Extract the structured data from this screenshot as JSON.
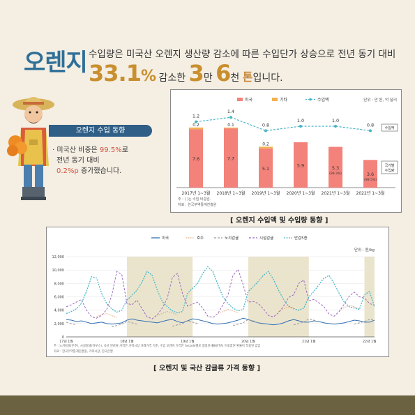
{
  "title": "오렌지",
  "headline_line1": "수입량은 미국산 오렌지 생산량 감소에 따른 수입단가 상승으로 전년 동기 대비",
  "headline_pct": "33.1",
  "headline_pct_unit": "%",
  "headline_mid1": " 감소한 ",
  "headline_num1": "3",
  "headline_unit1": "만 ",
  "headline_num2": "6",
  "headline_unit2": "천 ",
  "headline_ton": "톤",
  "headline_end": "입니다.",
  "badge": "오렌지 수입 동향",
  "bullet": {
    "prefix": "· 미국산 비중은 ",
    "pct": "99.5%",
    "suffix": "로",
    "line2": "전년 동기 대비",
    "chg": "0.2%p",
    "line3_end": " 증가했습니다."
  },
  "caption1": "[ 오렌지 수입액 및 수입량 동향 ]",
  "caption2": "[ 오렌지 및 국산 감귤류 가격 동향 ]",
  "colors": {
    "accent": "#2f6f97",
    "bar": "#f3827a",
    "line": "#46b3c6",
    "gold": "#c98f2e"
  },
  "chart_data": [
    {
      "type": "bar",
      "categories": [
        "2017년 1~3월",
        "2018년 1~3월",
        "2019년 1~3월",
        "2020년 1~3월",
        "2021년 1~3월",
        "2022년 1~3월"
      ],
      "series": [
        {
          "name": "미국",
          "values": [
            7.6,
            7.7,
            5.1,
            5.9,
            5.3,
            3.6
          ],
          "labels": [
            "7.6",
            "7.7",
            "5.1",
            "5.9",
            "5.3",
            "3.6"
          ],
          "sublabels": [
            "",
            "",
            "",
            "",
            "(99.3%)",
            "(99.5%)"
          ]
        },
        {
          "name": "기타",
          "values": [
            0.2,
            0.1,
            0.2,
            0,
            0,
            0
          ],
          "labels": [
            "0.2",
            "0.1",
            "0.2",
            "",
            "",
            ""
          ]
        },
        {
          "name": "수입액",
          "values": [
            1.2,
            1.4,
            0.8,
            1.0,
            1.0,
            0.8
          ],
          "labels": [
            "1.2",
            "1.4",
            "0.8",
            "1.0",
            "1.0",
            "0.8"
          ]
        }
      ],
      "legend": [
        "미국",
        "기타",
        "수입액"
      ],
      "unit": "단위 : 만 톤, 억 달러",
      "side_labels": [
        "수입액",
        "국가별 수입량"
      ],
      "notes": [
        "주 : ( )는 수입 비중임.",
        "자료 : 한국무역통계진흥원"
      ],
      "ylim": [
        0,
        10
      ]
    },
    {
      "type": "line",
      "unit": "단위 : 원/kg",
      "legend": [
        "미국",
        "호주",
        "노지감귤",
        "시설감귤",
        "만감5종"
      ],
      "y_ticks": [
        "0",
        "2,000",
        "4,000",
        "6,000",
        "8,000",
        "10,000",
        "12,000"
      ],
      "ylim": [
        0,
        12000
      ],
      "x_tick_labels": [
        "17년 1월",
        "18년 1월",
        "19년 1월",
        "20년 1월",
        "21년 1월",
        "22년 1월"
      ],
      "series": [
        {
          "name": "미국",
          "values": [
            2600,
            2500,
            2300,
            2400,
            2200,
            2000,
            2100,
            2200,
            2000,
            1900,
            2000,
            2100,
            2500,
            2700,
            2500,
            2400,
            2300,
            2200,
            2100,
            2300,
            2500,
            2600,
            2300,
            2100,
            2400,
            2700,
            2600,
            2400,
            2200,
            2000,
            1900,
            2000,
            2100,
            2300,
            2500,
            2800,
            2600,
            2300,
            2100,
            2000,
            1900,
            1800,
            1900,
            2100,
            2400,
            2600,
            2400,
            2200,
            2200,
            2400,
            2300,
            2100,
            2000,
            1900,
            2000,
            2100,
            2300,
            2500,
            2400,
            2200,
            2200,
            2500
          ]
        },
        {
          "name": "호주",
          "values": [
            null,
            null,
            null,
            null,
            null,
            null,
            3000,
            3300,
            3500,
            3200,
            2900,
            null,
            null,
            null,
            null,
            null,
            null,
            null,
            3200,
            3500,
            3800,
            3600,
            3300,
            null,
            null,
            null,
            null,
            null,
            null,
            null,
            3500,
            3800,
            4100,
            3900,
            3600,
            null,
            null,
            null,
            null,
            null,
            null,
            null,
            3800,
            4200,
            4500,
            4300,
            3900,
            null,
            null,
            null,
            null,
            null,
            null,
            null,
            4000,
            4400,
            4700,
            4500,
            4200,
            null,
            null,
            null
          ]
        },
        {
          "name": "노지감귤",
          "values": [
            2200,
            2000,
            1800,
            null,
            null,
            null,
            null,
            null,
            null,
            1500,
            1700,
            1900,
            2300,
            2100,
            1900,
            null,
            null,
            null,
            null,
            null,
            null,
            1600,
            1800,
            2000,
            2400,
            2200,
            2000,
            null,
            null,
            null,
            null,
            null,
            null,
            1700,
            1900,
            2100,
            2600,
            2400,
            2100,
            null,
            null,
            null,
            null,
            null,
            null,
            1800,
            2000,
            2200,
            2700,
            2500,
            2200,
            null,
            null,
            null,
            null,
            null,
            null,
            1900,
            2100,
            2300,
            2600,
            2500
          ]
        },
        {
          "name": "시설감귤",
          "values": [
            4500,
            4800,
            5200,
            5600,
            4000,
            3000,
            2800,
            3200,
            4100,
            6200,
            9800,
            9300,
            5000,
            4800,
            5500,
            4200,
            3000,
            2700,
            3300,
            4300,
            5800,
            8900,
            9500,
            6500,
            4600,
            4900,
            5200,
            4300,
            3100,
            2900,
            3500,
            4800,
            6300,
            9200,
            10100,
            7800,
            5200,
            5300,
            5000,
            4200,
            3200,
            3000,
            3600,
            4600,
            5900,
            6300,
            8000,
            8500,
            5400,
            5600,
            5100,
            4500,
            3400,
            3100,
            3800,
            4900,
            6100,
            6700,
            6000,
            5800,
            5000,
            4700
          ]
        },
        {
          "name": "만감5종",
          "values": [
            3500,
            3800,
            4200,
            5000,
            6800,
            9000,
            8800,
            6500,
            5000,
            4200,
            3700,
            4000,
            5500,
            6200,
            7000,
            8200,
            9800,
            9200,
            7000,
            5300,
            4500,
            3900,
            3600,
            3800,
            6500,
            7300,
            8000,
            9500,
            10500,
            9800,
            7800,
            6000,
            5000,
            4300,
            3900,
            4100,
            6800,
            7500,
            8300,
            9200,
            9800,
            8600,
            7000,
            5600,
            4600,
            4200,
            4000,
            4300,
            6000,
            6800,
            7800,
            8800,
            9200,
            8000,
            6500,
            5200,
            4500,
            4300,
            4100,
            6300,
            6800,
            4500
          ]
        }
      ],
      "notes": [
        "주 : 노지감귤(온주), 시설감귤(하우스), 국산 만감류 가격은 가락시장 거래가격 기준, 수입 오렌지 가격은 hscode별로 협정관세율(FTA) 미포함된 환율이 적용된 값임",
        "자료 : 한국무역통계진흥원, 가락시장, 한국은행"
      ]
    }
  ]
}
